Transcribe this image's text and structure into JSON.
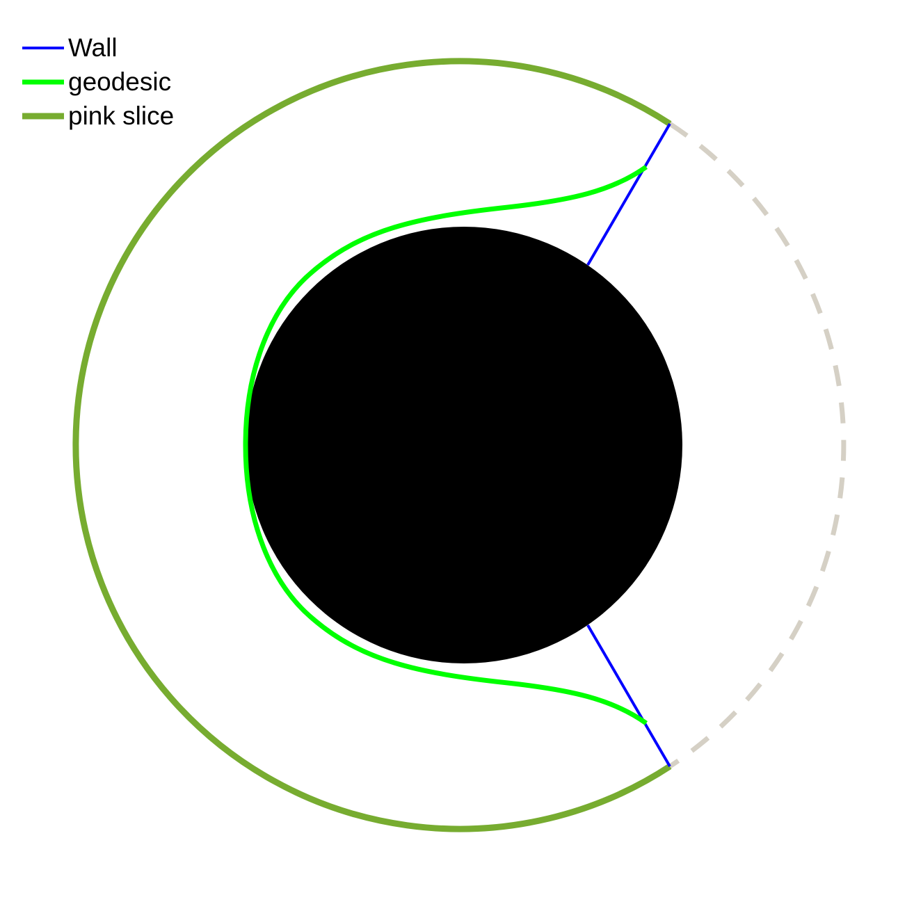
{
  "legend": {
    "items": [
      {
        "label": "Wall",
        "color": "#0000ff",
        "weight": "thin"
      },
      {
        "label": "geodesic",
        "color": "#00ff00",
        "weight": "medium"
      },
      {
        "label": "pink slice",
        "color": "#77ac30",
        "weight": "thick"
      }
    ]
  },
  "colors": {
    "wall": "#0000ff",
    "geodesic": "#00ff00",
    "slice": "#77ac30",
    "boundary_dashed": "#d5d0c5",
    "black_hole": "#000000",
    "background": "#ffffff"
  }
}
